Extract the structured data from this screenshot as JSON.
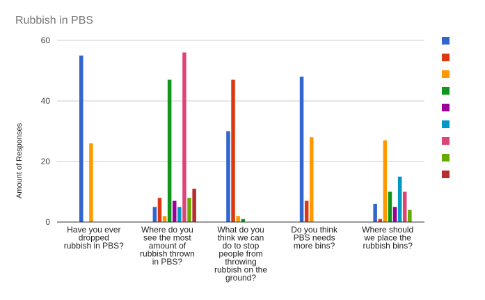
{
  "chart_data": {
    "type": "bar",
    "title": "Rubbish in PBS",
    "ylabel": "Amount of Responses",
    "xlabel": "",
    "ylim": [
      0,
      60
    ],
    "yticks": [
      0,
      20,
      40,
      60
    ],
    "grid": true,
    "legend_position": "right",
    "categories": [
      "Have you ever dropped rubbish in PBS?",
      "Where do you see the most amount of rubbish thrown in PBS?",
      "What do you think we can do to stop people from throwing rubbish on the ground?",
      "Do you think PBS needs more bins?",
      "Where should we place the rubbish bins?"
    ],
    "category_lines": [
      [
        "Have you ever",
        "dropped",
        "rubbish in PBS?"
      ],
      [
        "Where do you",
        "see the most",
        "amount of",
        "rubbish thrown",
        "in PBS?"
      ],
      [
        "What do you",
        "think we can",
        "do to stop",
        "people from",
        "throwing",
        "rubbish on the",
        "ground?"
      ],
      [
        "Do you think",
        "PBS needs",
        "more bins?"
      ],
      [
        "Where should",
        "we place the",
        "rubbish bins?"
      ]
    ],
    "series": [
      {
        "color": "#3366cc",
        "values": [
          55,
          5,
          30,
          48,
          6
        ]
      },
      {
        "color": "#dc3912",
        "values": [
          0,
          8,
          47,
          7,
          1
        ]
      },
      {
        "color": "#ff9900",
        "values": [
          26,
          2,
          2,
          28,
          27
        ]
      },
      {
        "color": "#109618",
        "values": [
          0,
          47,
          1,
          0,
          10
        ]
      },
      {
        "color": "#990099",
        "values": [
          0,
          7,
          0,
          0,
          5
        ]
      },
      {
        "color": "#0099c6",
        "values": [
          0,
          5,
          0,
          0,
          15
        ]
      },
      {
        "color": "#dd4477",
        "values": [
          0,
          56,
          0,
          0,
          10
        ]
      },
      {
        "color": "#66aa00",
        "values": [
          0,
          8,
          0,
          0,
          4
        ]
      },
      {
        "color": "#b82e2e",
        "values": [
          0,
          11,
          0,
          0,
          0
        ]
      }
    ]
  }
}
